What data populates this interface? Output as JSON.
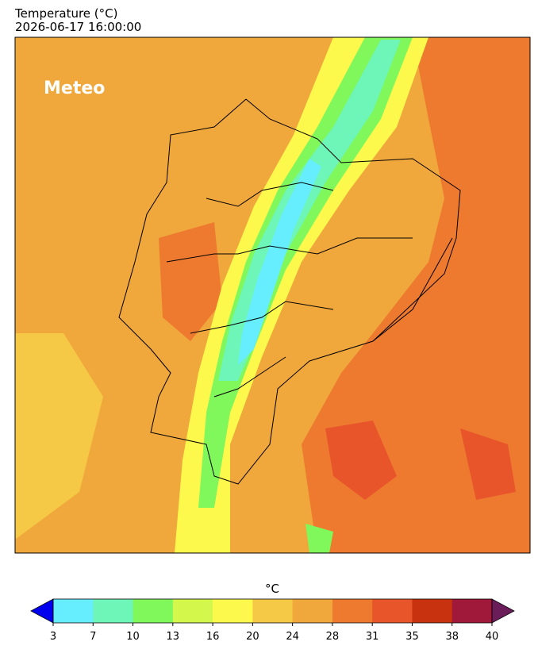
{
  "title": "Temperature (°C)",
  "timestamp": "2026-06-17 16:00:00",
  "logo": "Meteo",
  "colorbar": {
    "label": "°C",
    "ticks": [
      3,
      7,
      10,
      13,
      16,
      20,
      24,
      28,
      31,
      35,
      38,
      40
    ],
    "colors": [
      "#66eeff",
      "#6ef5b8",
      "#80f75a",
      "#d4f74c",
      "#fdf84c",
      "#f5c845",
      "#f0a83c",
      "#ee7a30",
      "#e8552a",
      "#c8320f",
      "#a0183a"
    ],
    "under_color": "#0000ee",
    "over_color": "#6b1d5a"
  }
}
